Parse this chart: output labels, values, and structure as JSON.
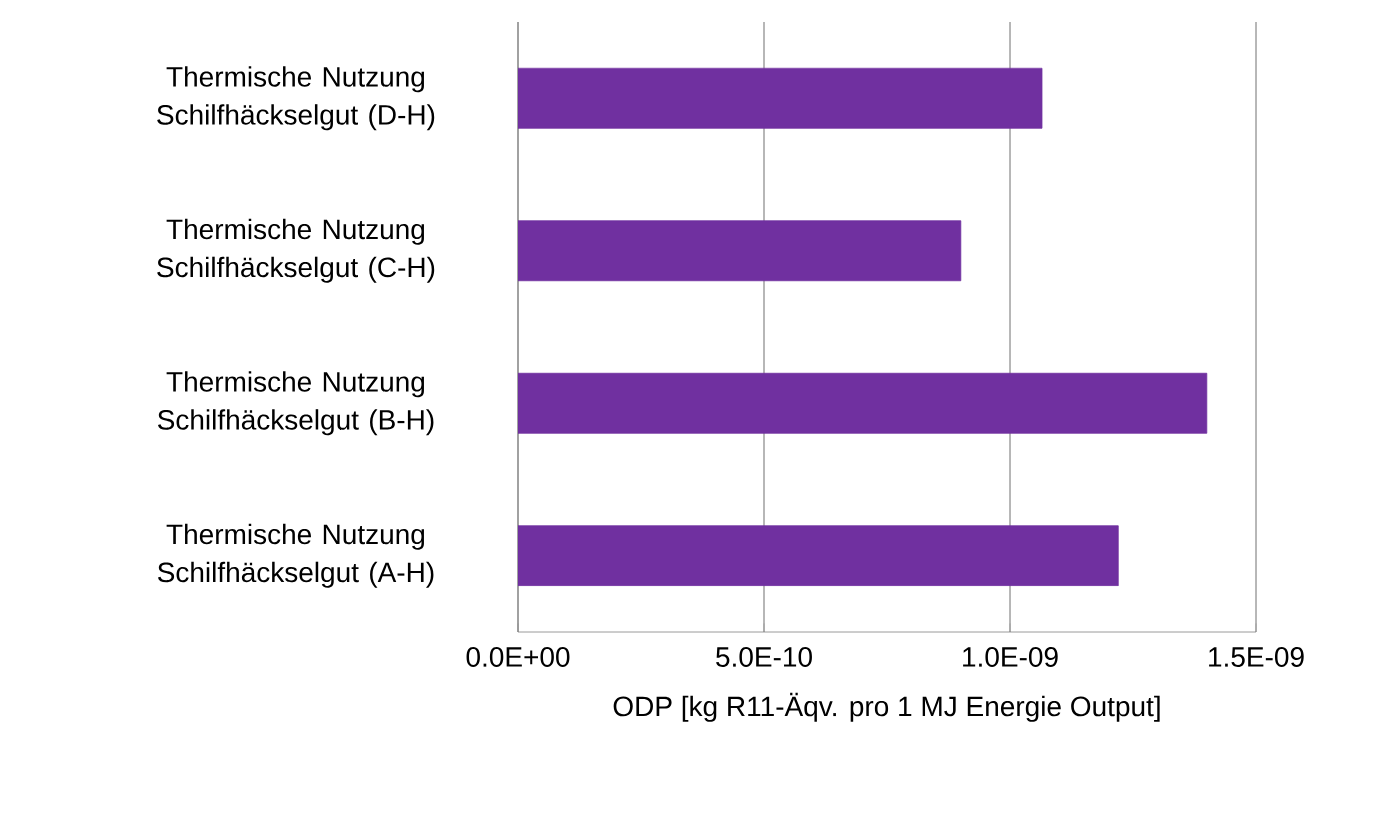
{
  "chart_data": {
    "type": "bar",
    "orientation": "horizontal",
    "categories": [
      "Thermische Nutzung Schilfhäckselgut (D-H)",
      "Thermische Nutzung Schilfhäckselgut (C-H)",
      "Thermische Nutzung Schilfhäckselgut (B-H)",
      "Thermische Nutzung Schilfhäckselgut (A-H)"
    ],
    "values": [
      1.065e-09,
      9e-10,
      1.4e-09,
      1.22e-09
    ],
    "color": "#7030a0",
    "xlim": [
      0,
      1.5e-09
    ],
    "xticks": [
      {
        "value": 0,
        "label": "0.0E+00"
      },
      {
        "value": 5e-10,
        "label": "5.0E-10"
      },
      {
        "value": 1e-09,
        "label": "1.0E-09"
      },
      {
        "value": 1.5e-09,
        "label": "1.5E-09"
      }
    ],
    "xlabel": "ODP [kg R11-Äqv. pro 1 MJ Energie Output]",
    "grid": "x"
  }
}
